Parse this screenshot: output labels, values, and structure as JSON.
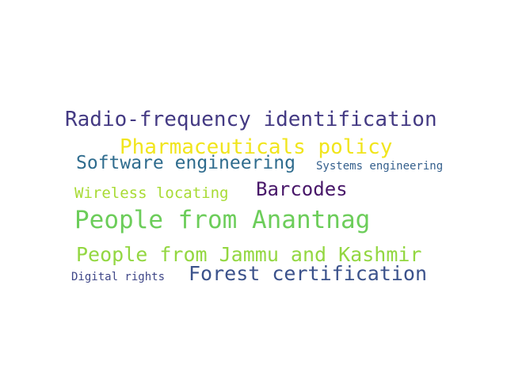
{
  "words": [
    {
      "text": "Radio-frequency identification",
      "color": "#443a83"
    },
    {
      "text": "Pharmaceuticals policy",
      "color": "#f1e51d"
    },
    {
      "text": "Software engineering",
      "color": "#2f6c8e"
    },
    {
      "text": "Systems engineering",
      "color": "#35608d"
    },
    {
      "text": "Barcodes",
      "color": "#481769"
    },
    {
      "text": "Wireless locating",
      "color": "#a8db34"
    },
    {
      "text": "People from Anantnag",
      "color": "#6ccd5a"
    },
    {
      "text": "People from Jammu and Kashmir",
      "color": "#93d741"
    },
    {
      "text": "Forest certification",
      "color": "#3b528b"
    },
    {
      "text": "Digital rights",
      "color": "#3f4788"
    }
  ]
}
